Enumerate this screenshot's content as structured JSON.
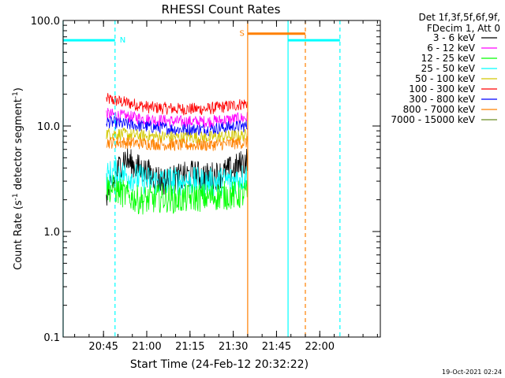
{
  "chart_data": {
    "type": "line",
    "title": "RHESSI Count Rates",
    "xlabel": "Start Time (24-Feb-12 20:32:22)",
    "ylabel_main": "Count Rate (s",
    "ylabel_exp1": "-1",
    "ylabel_mid": " detector segment",
    "ylabel_exp2": "-1",
    "ylabel_end": ")",
    "x_range_min": [
      0,
      110
    ],
    "y_scale": "log",
    "ylim": [
      0.1,
      100
    ],
    "x_ticks": [
      {
        "min": 14,
        "label": "20:45"
      },
      {
        "min": 29,
        "label": "21:00"
      },
      {
        "min": 44,
        "label": "21:15"
      },
      {
        "min": 59,
        "label": "21:30"
      },
      {
        "min": 74,
        "label": "21:45"
      },
      {
        "min": 89,
        "label": "22:00"
      }
    ],
    "y_ticks": [
      {
        "value": 0.1,
        "label": "0.1"
      },
      {
        "value": 1,
        "label": "1.0"
      },
      {
        "value": 10,
        "label": "10.0"
      },
      {
        "value": 100,
        "label": "100.0"
      }
    ],
    "legend": {
      "position": "top-right",
      "header1": "Det 1f,3f,5f,6f,9f,",
      "header2": "FDecim 1, Att 0",
      "entries": [
        {
          "label": "3 - 6 keV",
          "color": "#000000"
        },
        {
          "label": "6 - 12 keV",
          "color": "#ff00ff"
        },
        {
          "label": "12 - 25 keV",
          "color": "#00ff00"
        },
        {
          "label": "25 - 50 keV",
          "color": "#00ffff"
        },
        {
          "label": "50 - 100 keV",
          "color": "#d2c800"
        },
        {
          "label": "100 - 300 keV",
          "color": "#ff0000"
        },
        {
          "label": "300 - 800 keV",
          "color": "#0000ff"
        },
        {
          "label": "800 - 7000 keV",
          "color": "#ff8000"
        },
        {
          "label": "7000 - 15000 keV",
          "color": "#6b8e23"
        }
      ]
    },
    "series_time_min": [
      15,
      64
    ],
    "series": [
      {
        "color": "#ff0000",
        "points": [
          [
            15,
            18
          ],
          [
            20,
            17
          ],
          [
            30,
            15
          ],
          [
            40,
            14.5
          ],
          [
            50,
            14.5
          ],
          [
            58,
            15.5
          ],
          [
            64,
            16.5
          ]
        ]
      },
      {
        "color": "#ff00ff",
        "points": [
          [
            15,
            13
          ],
          [
            20,
            12.5
          ],
          [
            30,
            11.5
          ],
          [
            40,
            11
          ],
          [
            50,
            11
          ],
          [
            58,
            11.5
          ],
          [
            64,
            12
          ]
        ]
      },
      {
        "color": "#0000ff",
        "points": [
          [
            15,
            11
          ],
          [
            20,
            10.5
          ],
          [
            30,
            9.8
          ],
          [
            40,
            9.3
          ],
          [
            50,
            9.3
          ],
          [
            58,
            9.8
          ],
          [
            64,
            10
          ]
        ]
      },
      {
        "color": "#d2c800",
        "points": [
          [
            15,
            8.5
          ],
          [
            20,
            8.4
          ],
          [
            30,
            8
          ],
          [
            40,
            7.8
          ],
          [
            50,
            7.8
          ],
          [
            58,
            8
          ],
          [
            64,
            8.2
          ]
        ]
      },
      {
        "color": "#ff8000",
        "points": [
          [
            15,
            7
          ],
          [
            20,
            7
          ],
          [
            30,
            6.8
          ],
          [
            40,
            6.6
          ],
          [
            50,
            6.6
          ],
          [
            58,
            6.8
          ],
          [
            64,
            7
          ]
        ]
      },
      {
        "color": "#000000",
        "points": [
          [
            15,
            2.3
          ],
          [
            17,
            2.6
          ],
          [
            19,
            3.8
          ],
          [
            21,
            5
          ],
          [
            23,
            4.5
          ],
          [
            26,
            4
          ],
          [
            30,
            3.5
          ],
          [
            35,
            3
          ],
          [
            40,
            3.2
          ],
          [
            45,
            3.5
          ],
          [
            50,
            3.3
          ],
          [
            55,
            3.5
          ],
          [
            60,
            4
          ],
          [
            64,
            4.8
          ]
        ]
      },
      {
        "color": "#00ffff",
        "points": [
          [
            15,
            3.3
          ],
          [
            18,
            3.7
          ],
          [
            22,
            3.4
          ],
          [
            26,
            3.2
          ],
          [
            30,
            3
          ],
          [
            35,
            3
          ],
          [
            40,
            3
          ],
          [
            45,
            3
          ],
          [
            50,
            2.9
          ],
          [
            55,
            3
          ],
          [
            60,
            3.1
          ],
          [
            64,
            3.4
          ]
        ]
      },
      {
        "color": "#00ff00",
        "points": [
          [
            15,
            2.6
          ],
          [
            18,
            2.5
          ],
          [
            22,
            2.2
          ],
          [
            26,
            2
          ],
          [
            30,
            2
          ],
          [
            35,
            2.1
          ],
          [
            40,
            2
          ],
          [
            45,
            2.1
          ],
          [
            50,
            2.1
          ],
          [
            55,
            2.2
          ],
          [
            60,
            2.2
          ],
          [
            64,
            2.3
          ]
        ]
      }
    ],
    "orange_drop_end": [
      64,
      0.8
    ],
    "regions": [
      {
        "label": "N",
        "color": "#00ffff",
        "start_min": 0,
        "end_min": 18,
        "level": 65,
        "solid_left": true
      },
      {
        "label": "",
        "color": "#00ffff",
        "start_min": 78,
        "end_min": 96,
        "level": 65,
        "solid_left": true
      },
      {
        "label": "S",
        "color": "#ff8000",
        "start_min": 64,
        "end_min": 84,
        "level": 75,
        "solid_left": true
      }
    ],
    "timestamp": "19-Oct-2021 02:24"
  }
}
